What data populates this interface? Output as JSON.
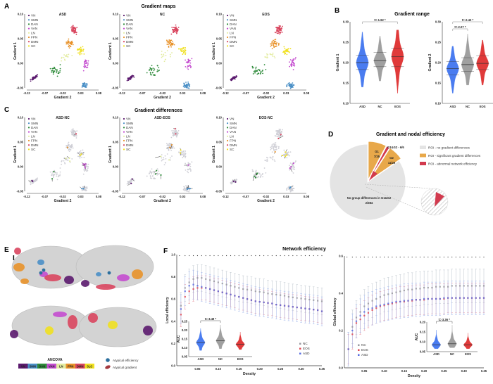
{
  "colors": {
    "VN": "#5b1a6e",
    "SMN": "#4a8fc6",
    "DAN": "#2e8b3a",
    "VAN": "#c44ccf",
    "LN": "#e3eca0",
    "FPN": "#e8922a",
    "DMN": "#d9465f",
    "SC": "#f0e020",
    "ASD": "#4a7cf0",
    "NC": "#a0a0a0",
    "EOS": "#e03a3a",
    "no_diff": "#e4e4e4",
    "grad_diff": "#e8a84a",
    "abn_eff": "#d23a4e"
  },
  "panel_a": {
    "letter": "A",
    "title": "Gradient maps",
    "plots": [
      {
        "title": "ASD"
      },
      {
        "title": "NC"
      },
      {
        "title": "EOS"
      }
    ],
    "legend": [
      "VN",
      "SMN",
      "DAN",
      "VAN",
      "LN",
      "FPN",
      "DMN",
      "SC"
    ],
    "xlabel": "Gradient 2",
    "ylabel": "Gradient 1",
    "xticks": [
      "-0.12",
      "-0.07",
      "-0.02",
      "0.03",
      "0.08"
    ],
    "yticks": [
      "-0.05",
      "0.00",
      "0.05",
      "0.10"
    ]
  },
  "panel_b": {
    "letter": "B",
    "title": "Gradient range",
    "groups": [
      "ASD",
      "NC",
      "EOS"
    ],
    "yticks": [
      "0.10",
      "0.15",
      "0.20",
      "0.25",
      "0.30"
    ]
  },
  "panel_c": {
    "letter": "C",
    "title": "Gradient differences",
    "plots": [
      {
        "title": "ASD-NC"
      },
      {
        "title": "ASD-EOS"
      },
      {
        "title": "EOS-NC"
      }
    ],
    "legend": [
      "VN",
      "SMN",
      "DAN",
      "VAN",
      "LN",
      "FPN",
      "DMN",
      "SC"
    ]
  },
  "panel_d": {
    "letter": "D",
    "title": "Gradient and nodal efficiency",
    "legend": [
      "ROI - no gradient differences",
      "ROI - significant gradient differences",
      "ROI - abnormal network efficiency"
    ]
  },
  "panel_e": {
    "letter": "E",
    "left": "L",
    "right": "R",
    "bar_title": "ANCOVA",
    "bar": [
      "VN",
      "SMN",
      "DAN",
      "VAN",
      "LN",
      "FPN",
      "DMN",
      "SLC"
    ],
    "legend": [
      "Atypical efficiency",
      "Atypical gradient"
    ]
  },
  "panel_f": {
    "letter": "F",
    "title": "Network efficiency",
    "legend": [
      "NC",
      "EOS",
      "ASD"
    ]
  },
  "chart_data": [
    {
      "type": "violin",
      "id": "gradient1_range",
      "ylabel": "Gradient 1",
      "ylim": [
        0.1,
        0.3
      ],
      "categories": [
        "ASD",
        "NC",
        "EOS"
      ],
      "median": [
        0.2,
        0.205,
        0.215
      ],
      "q1": [
        0.183,
        0.19,
        0.19
      ],
      "q3": [
        0.218,
        0.225,
        0.235
      ],
      "min": [
        0.14,
        0.155,
        0.125
      ],
      "max": [
        0.275,
        0.265,
        0.28
      ],
      "annotations": [
        {
          "pair": [
            "ASD",
            "EOS"
          ],
          "text": "t=-1.92 *"
        }
      ]
    },
    {
      "type": "violin",
      "id": "gradient2_range",
      "ylabel": "Gradient 2",
      "ylim": [
        0.1,
        0.3
      ],
      "categories": [
        "ASD",
        "NC",
        "EOS"
      ],
      "median": [
        0.185,
        0.195,
        0.198
      ],
      "q1": [
        0.17,
        0.178,
        0.183
      ],
      "q3": [
        0.203,
        0.212,
        0.217
      ],
      "min": [
        0.125,
        0.145,
        0.145
      ],
      "max": [
        0.24,
        0.27,
        0.255
      ],
      "annotations": [
        {
          "pair": [
            "ASD",
            "EOS"
          ],
          "text": "t=-2.43 *"
        },
        {
          "pair": [
            "ASD",
            "NC"
          ],
          "text": "t=-2.07 *"
        }
      ]
    },
    {
      "type": "pie",
      "id": "gradient_nodal_efficiency",
      "slices": [
        {
          "label": "G1",
          "value": 35,
          "text": "7/35"
        },
        {
          "label": "G1&G2 - 6/6",
          "value": 6,
          "text": ""
        },
        {
          "label": "G2",
          "value": 29,
          "text": "11/29"
        },
        {
          "label": "No group differences in G1&G2",
          "value": 384,
          "text": "2/384"
        }
      ]
    },
    {
      "type": "line",
      "id": "local_efficiency",
      "xlabel": "Density",
      "ylabel": "Local efficiency",
      "xlim": [
        0,
        0.35
      ],
      "ylim": [
        0,
        1.0
      ],
      "xticks": [
        "0.05",
        "0.10",
        "0.15",
        "0.20",
        "0.25",
        "0.30",
        "0.35"
      ],
      "yticks": [
        "0.0",
        "0.2",
        "0.4",
        "0.6",
        "0.8",
        "1.0"
      ],
      "x": [
        0.01,
        0.02,
        0.03,
        0.04,
        0.05,
        0.06,
        0.07,
        0.08,
        0.09,
        0.1,
        0.11,
        0.12,
        0.13,
        0.14,
        0.15,
        0.16,
        0.17,
        0.18,
        0.19,
        0.2,
        0.21,
        0.22,
        0.23,
        0.24,
        0.25,
        0.26,
        0.27,
        0.28,
        0.29,
        0.3,
        0.31,
        0.32,
        0.33,
        0.34,
        0.35
      ],
      "series": [
        {
          "name": "NC",
          "sd": 0.12,
          "values": [
            0.54,
            0.7,
            0.75,
            0.78,
            0.79,
            0.79,
            0.78,
            0.77,
            0.76,
            0.75,
            0.74,
            0.73,
            0.72,
            0.71,
            0.7,
            0.69,
            0.685,
            0.68,
            0.67,
            0.665,
            0.66,
            0.65,
            0.645,
            0.64,
            0.635,
            0.63,
            0.62,
            0.615,
            0.61,
            0.605,
            0.6,
            0.595,
            0.59,
            0.585,
            0.58
          ]
        },
        {
          "name": "EOS",
          "sd": 0.11,
          "values": [
            0.46,
            0.62,
            0.67,
            0.69,
            0.7,
            0.7,
            0.7,
            0.69,
            0.68,
            0.67,
            0.66,
            0.65,
            0.64,
            0.63,
            0.62,
            0.61,
            0.6,
            0.59,
            0.58,
            0.575,
            0.57,
            0.565,
            0.56,
            0.55,
            0.545,
            0.54,
            0.535,
            0.53,
            0.525,
            0.52,
            0.515,
            0.51,
            0.505,
            0.5,
            0.49
          ]
        },
        {
          "name": "ASD",
          "sd": 0.13,
          "values": [
            0.51,
            0.67,
            0.72,
            0.73,
            0.72,
            0.71,
            0.7,
            0.69,
            0.68,
            0.67,
            0.66,
            0.65,
            0.64,
            0.63,
            0.62,
            0.61,
            0.6,
            0.59,
            0.58,
            0.575,
            0.57,
            0.565,
            0.56,
            0.55,
            0.545,
            0.54,
            0.535,
            0.53,
            0.525,
            0.52,
            0.515,
            0.51,
            0.505,
            0.5,
            0.49
          ]
        }
      ],
      "inset": {
        "type": "violin",
        "ylabel": "AUC",
        "ylim": [
          0.05,
          0.25
        ],
        "yticks": [
          "0.05",
          "0.10",
          "0.15",
          "0.20",
          "0.25"
        ],
        "categories": [
          "ASD",
          "NC",
          "EOS"
        ],
        "median": [
          0.13,
          0.14,
          0.12
        ],
        "min": [
          0.085,
          0.095,
          0.09
        ],
        "max": [
          0.21,
          0.23,
          0.19
        ],
        "annotation": "t=-3.49 *"
      }
    },
    {
      "type": "line",
      "id": "global_efficiency",
      "xlabel": "Density",
      "ylabel": "Global efficiency",
      "xlim": [
        0,
        0.35
      ],
      "ylim": [
        0,
        0.6
      ],
      "xticks": [
        "0.05",
        "0.10",
        "0.15",
        "0.20",
        "0.25",
        "0.30",
        "0.35"
      ],
      "yticks": [
        "0.0",
        "0.2",
        "0.4",
        "0.6"
      ],
      "x": [
        0.01,
        0.02,
        0.03,
        0.04,
        0.05,
        0.06,
        0.07,
        0.08,
        0.09,
        0.1,
        0.11,
        0.12,
        0.13,
        0.14,
        0.15,
        0.16,
        0.17,
        0.18,
        0.19,
        0.2,
        0.21,
        0.22,
        0.23,
        0.24,
        0.25,
        0.26,
        0.27,
        0.28,
        0.29,
        0.3,
        0.31,
        0.32,
        0.33,
        0.34,
        0.35
      ],
      "series": [
        {
          "name": "NC",
          "sd": 0.09,
          "values": [
            0.1,
            0.22,
            0.27,
            0.3,
            0.33,
            0.345,
            0.36,
            0.37,
            0.38,
            0.39,
            0.395,
            0.4,
            0.405,
            0.41,
            0.415,
            0.42,
            0.42,
            0.425,
            0.425,
            0.43,
            0.43,
            0.43,
            0.435,
            0.435,
            0.435,
            0.435,
            0.44,
            0.44,
            0.44,
            0.44,
            0.44,
            0.44,
            0.44,
            0.44,
            0.44
          ]
        },
        {
          "name": "EOS",
          "sd": 0.08,
          "values": [
            0.1,
            0.18,
            0.24,
            0.26,
            0.28,
            0.295,
            0.31,
            0.32,
            0.33,
            0.335,
            0.34,
            0.345,
            0.35,
            0.355,
            0.355,
            0.36,
            0.36,
            0.365,
            0.365,
            0.365,
            0.37,
            0.37,
            0.37,
            0.37,
            0.37,
            0.375,
            0.375,
            0.375,
            0.375,
            0.375,
            0.375,
            0.375,
            0.375,
            0.375,
            0.375
          ]
        },
        {
          "name": "ASD",
          "sd": 0.09,
          "values": [
            0.1,
            0.2,
            0.25,
            0.28,
            0.3,
            0.315,
            0.32,
            0.33,
            0.335,
            0.34,
            0.345,
            0.35,
            0.355,
            0.355,
            0.36,
            0.36,
            0.365,
            0.365,
            0.365,
            0.37,
            0.37,
            0.37,
            0.37,
            0.37,
            0.375,
            0.375,
            0.375,
            0.375,
            0.375,
            0.375,
            0.375,
            0.375,
            0.375,
            0.375,
            0.375
          ]
        }
      ],
      "inset": {
        "type": "violin",
        "ylabel": "AUC",
        "ylim": [
          0.05,
          0.2
        ],
        "yticks": [
          "0.05",
          "0.10",
          "0.15",
          "0.20"
        ],
        "categories": [
          "ASD",
          "NC",
          "EOS"
        ],
        "median": [
          0.085,
          0.09,
          0.085
        ],
        "min": [
          0.065,
          0.07,
          0.065
        ],
        "max": [
          0.16,
          0.185,
          0.145
        ],
        "annotation": "t=-3.36 *"
      }
    }
  ]
}
